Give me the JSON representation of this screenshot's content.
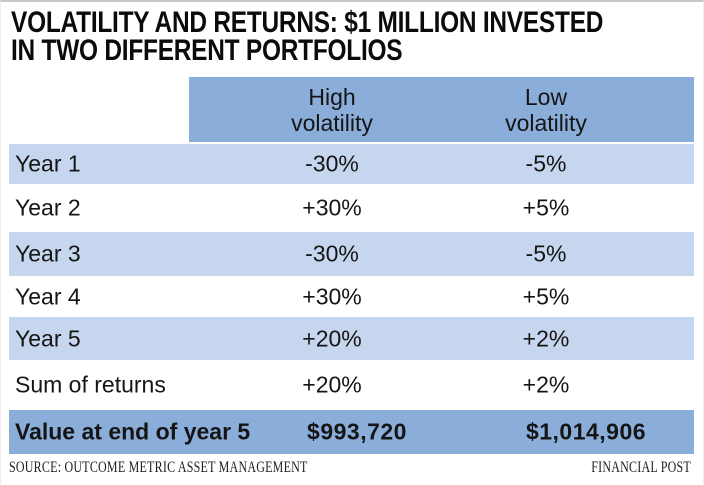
{
  "title": {
    "line1": "VOLATILITY AND RETURNS: $1 MILLION INVESTED",
    "line2": "IN TWO DIFFERENT PORTFOLIOS"
  },
  "table": {
    "header": {
      "high": {
        "line1": "High",
        "line2": "volatility"
      },
      "low": {
        "line1": "Low",
        "line2": "volatility"
      }
    },
    "rows": [
      {
        "label": "Year 1",
        "high": "-30%",
        "low": "-5%"
      },
      {
        "label": "Year 2",
        "high": "+30%",
        "low": "+5%"
      },
      {
        "label": "Year 3",
        "high": "-30%",
        "low": "-5%"
      },
      {
        "label": "Year 4",
        "high": "+30%",
        "low": "+5%"
      },
      {
        "label": "Year 5",
        "high": "+20%",
        "low": "+2%"
      },
      {
        "label": "Sum of returns",
        "high": "+20%",
        "low": "+2%"
      }
    ],
    "total": {
      "label": "Value at end of year 5",
      "high": "$993,720",
      "low": "$1,014,906"
    }
  },
  "footer": {
    "source": "SOURCE: OUTCOME METRIC ASSET MANAGEMENT",
    "credit": "FINANCIAL POST"
  },
  "colors": {
    "header_blue": "#8badd9",
    "row_blue": "#c6d6ee",
    "text": "#151515"
  },
  "chart_data": {
    "type": "table",
    "title": "VOLATILITY AND RETURNS: $1 MILLION INVESTED IN TWO DIFFERENT PORTFOLIOS",
    "columns": [
      "",
      "High volatility",
      "Low volatility"
    ],
    "rows": [
      [
        "Year 1",
        "-30%",
        "-5%"
      ],
      [
        "Year 2",
        "+30%",
        "+5%"
      ],
      [
        "Year 3",
        "-30%",
        "-5%"
      ],
      [
        "Year 4",
        "+30%",
        "+5%"
      ],
      [
        "Year 5",
        "+20%",
        "+2%"
      ],
      [
        "Sum of returns",
        "+20%",
        "+2%"
      ],
      [
        "Value at end of year 5",
        "$993,720",
        "$1,014,906"
      ]
    ],
    "source": "SOURCE: OUTCOME METRIC ASSET MANAGEMENT",
    "credit": "FINANCIAL POST",
    "layout": {
      "shaded_rows": [
        0,
        2,
        4
      ],
      "grid": "off",
      "legend": "none"
    }
  }
}
